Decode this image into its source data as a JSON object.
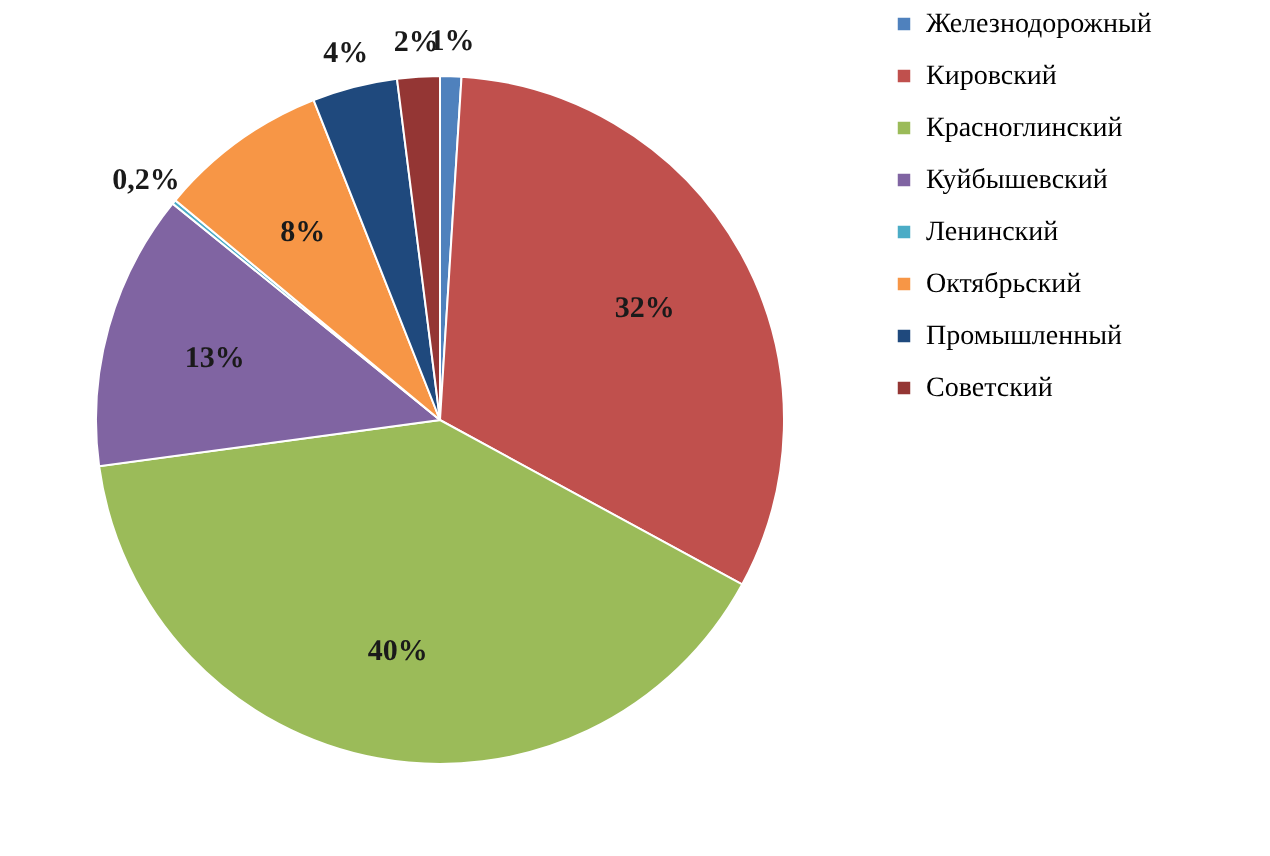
{
  "chart_data": {
    "type": "pie",
    "categories": [
      "Железнодорожный",
      "Кировский",
      "Красноглинский",
      "Куйбышевский",
      "Ленинский",
      "Октябрьский",
      "Промышленный",
      "Советский"
    ],
    "values": [
      1,
      32,
      40,
      13,
      0.2,
      8,
      4,
      2
    ],
    "value_labels": [
      "1%",
      "32%",
      "40%",
      "13%",
      "0,2%",
      "8%",
      "4%",
      "2%"
    ],
    "colors": [
      "#4f81bd",
      "#c0504d",
      "#9bbb59",
      "#8064a2",
      "#4bacc6",
      "#f79646",
      "#1f497d",
      "#943634"
    ],
    "legend": "right"
  }
}
